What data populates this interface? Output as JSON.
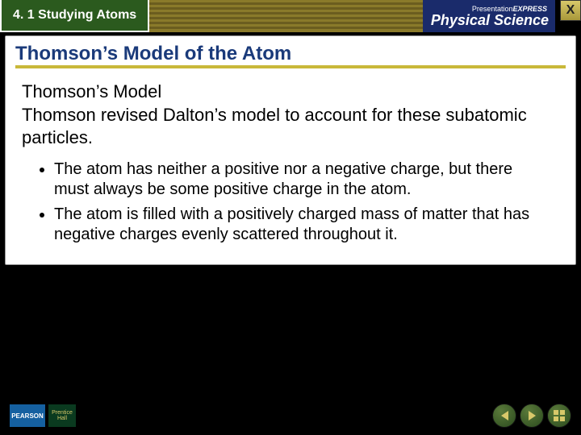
{
  "header": {
    "section_label": "4. 1 Studying Atoms",
    "brand_small_top": "Presentation",
    "brand_small_em": "EXPRESS",
    "brand_title": "Physical Science",
    "close_label": "X"
  },
  "slide": {
    "title": "Thomson’s Model of the Atom",
    "heading": "Thomson’s Model",
    "paragraph": "Thomson revised Dalton’s model to account for these subatomic particles.",
    "bullets": [
      "The atom has neither a positive nor a negative charge, but there must always be some positive charge in the atom.",
      "The atom is filled with a positively charged mass of matter that has negative charges evenly scattered throughout it."
    ]
  },
  "footer": {
    "pearson": "PEARSON",
    "ph1": "Prentice",
    "ph2": "Hall"
  },
  "colors": {
    "tab_bg": "#2b5a1e",
    "accent": "#c9b83a",
    "title_color": "#1a3a7a",
    "brand_bg": "#1a2b6b"
  }
}
